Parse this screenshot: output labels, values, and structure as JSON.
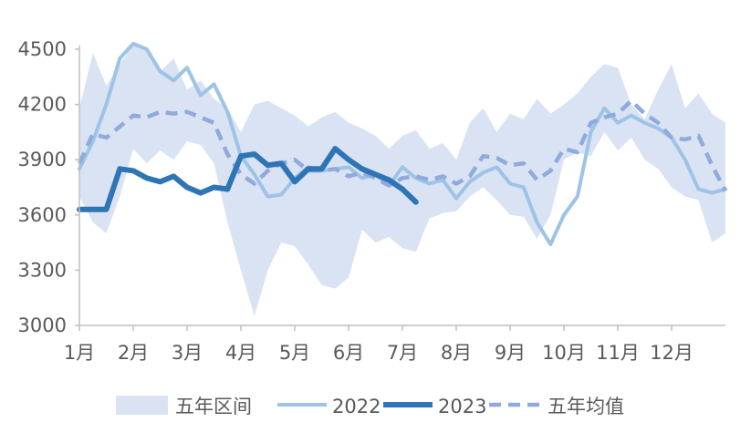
{
  "chart_data": {
    "type": "line",
    "title": "",
    "xlabel": "",
    "ylabel": "",
    "ylim": [
      3000,
      4500
    ],
    "yticks": [
      3000,
      3300,
      3600,
      3900,
      4200,
      4500
    ],
    "x_range": [
      0,
      12
    ],
    "month_labels": [
      "1月",
      "2月",
      "3月",
      "4月",
      "5月",
      "6月",
      "7月",
      "8月",
      "9月",
      "10月",
      "11月",
      "12月"
    ],
    "legend_position": "bottom",
    "colors": {
      "band": "#dae3f3",
      "s2022": "#9dc3e6",
      "s2023": "#2e75b6",
      "avg": "#8faadc",
      "axis": "#bfbfbf"
    },
    "band": {
      "name": "五年区间",
      "x": [
        0,
        0.25,
        0.5,
        0.75,
        1.0,
        1.25,
        1.5,
        1.75,
        2.0,
        2.25,
        2.5,
        2.75,
        3.0,
        3.25,
        3.5,
        3.75,
        4.0,
        4.25,
        4.5,
        4.75,
        5.0,
        5.25,
        5.5,
        5.75,
        6.0,
        6.25,
        6.5,
        6.75,
        7.0,
        7.25,
        7.5,
        7.75,
        8.0,
        8.25,
        8.5,
        8.75,
        9.0,
        9.25,
        9.5,
        9.75,
        10.0,
        10.25,
        10.5,
        10.75,
        11.0,
        11.25,
        11.5,
        11.75,
        12.0
      ],
      "high": [
        4180,
        4480,
        4300,
        4420,
        4520,
        4500,
        4380,
        4450,
        4280,
        4330,
        4230,
        4180,
        4050,
        4200,
        4220,
        4180,
        4140,
        4080,
        4130,
        4160,
        4100,
        4070,
        4030,
        3960,
        4030,
        4060,
        3960,
        3990,
        3900,
        4100,
        4180,
        4050,
        4150,
        4120,
        4230,
        4150,
        4200,
        4260,
        4350,
        4420,
        4400,
        4200,
        4120,
        4280,
        4420,
        4180,
        4260,
        4150,
        4100
      ],
      "low": [
        3700,
        3560,
        3500,
        3700,
        3960,
        3880,
        3950,
        3900,
        4000,
        3980,
        3880,
        3560,
        3300,
        3050,
        3300,
        3450,
        3430,
        3330,
        3220,
        3200,
        3260,
        3520,
        3450,
        3480,
        3420,
        3400,
        3580,
        3610,
        3620,
        3700,
        3750,
        3680,
        3600,
        3590,
        3470,
        3600,
        3900,
        3940,
        3920,
        4050,
        3950,
        4020,
        3900,
        3850,
        3750,
        3700,
        3680,
        3450,
        3500
      ]
    },
    "series": [
      {
        "name": "2022",
        "x": [
          0,
          0.25,
          0.5,
          0.75,
          1.0,
          1.25,
          1.5,
          1.75,
          2.0,
          2.25,
          2.5,
          2.75,
          3.0,
          3.25,
          3.5,
          3.75,
          4.0,
          4.25,
          4.5,
          4.75,
          5.0,
          5.25,
          5.5,
          5.75,
          6.0,
          6.25,
          6.5,
          6.75,
          7.0,
          7.25,
          7.5,
          7.75,
          8.0,
          8.25,
          8.5,
          8.75,
          9.0,
          9.25,
          9.5,
          9.75,
          10.0,
          10.25,
          10.5,
          10.75,
          11.0,
          11.25,
          11.5,
          11.75,
          12.0
        ],
        "values": [
          3850,
          4000,
          4200,
          4450,
          4530,
          4500,
          4380,
          4330,
          4400,
          4250,
          4310,
          4160,
          3920,
          3820,
          3700,
          3710,
          3800,
          3860,
          3840,
          3850,
          3860,
          3800,
          3820,
          3760,
          3860,
          3800,
          3770,
          3790,
          3690,
          3780,
          3830,
          3860,
          3770,
          3750,
          3560,
          3440,
          3600,
          3700,
          4050,
          4180,
          4100,
          4140,
          4100,
          4070,
          4020,
          3900,
          3740,
          3720,
          3740
        ]
      },
      {
        "name": "2023",
        "x": [
          0,
          0.25,
          0.5,
          0.75,
          1.0,
          1.25,
          1.5,
          1.75,
          2.0,
          2.25,
          2.5,
          2.75,
          3.0,
          3.25,
          3.5,
          3.75,
          4.0,
          4.25,
          4.5,
          4.75,
          5.0,
          5.25,
          5.5,
          5.75,
          6.0,
          6.25
        ],
        "values": [
          3630,
          3630,
          3630,
          3850,
          3840,
          3800,
          3780,
          3810,
          3750,
          3720,
          3750,
          3740,
          3920,
          3930,
          3870,
          3880,
          3780,
          3850,
          3850,
          3960,
          3900,
          3850,
          3820,
          3790,
          3740,
          3670
        ]
      },
      {
        "name": "五年均值",
        "x": [
          0,
          0.25,
          0.5,
          0.75,
          1.0,
          1.25,
          1.5,
          1.75,
          2.0,
          2.25,
          2.5,
          2.75,
          3.0,
          3.25,
          3.5,
          3.75,
          4.0,
          4.25,
          4.5,
          4.75,
          5.0,
          5.25,
          5.5,
          5.75,
          6.0,
          6.25,
          6.5,
          6.75,
          7.0,
          7.25,
          7.5,
          7.75,
          8.0,
          8.25,
          8.5,
          8.75,
          9.0,
          9.25,
          9.5,
          9.75,
          10.0,
          10.25,
          10.5,
          10.75,
          11.0,
          11.25,
          11.5,
          11.75,
          12.0
        ],
        "values": [
          3880,
          4040,
          4020,
          4080,
          4140,
          4130,
          4160,
          4150,
          4160,
          4130,
          4100,
          3930,
          3820,
          3770,
          3840,
          3880,
          3900,
          3840,
          3840,
          3850,
          3810,
          3830,
          3800,
          3760,
          3800,
          3810,
          3790,
          3810,
          3770,
          3810,
          3920,
          3910,
          3870,
          3880,
          3790,
          3840,
          3960,
          3940,
          4100,
          4130,
          4150,
          4220,
          4150,
          4100,
          4020,
          4010,
          4030,
          3870,
          3730
        ]
      }
    ]
  }
}
